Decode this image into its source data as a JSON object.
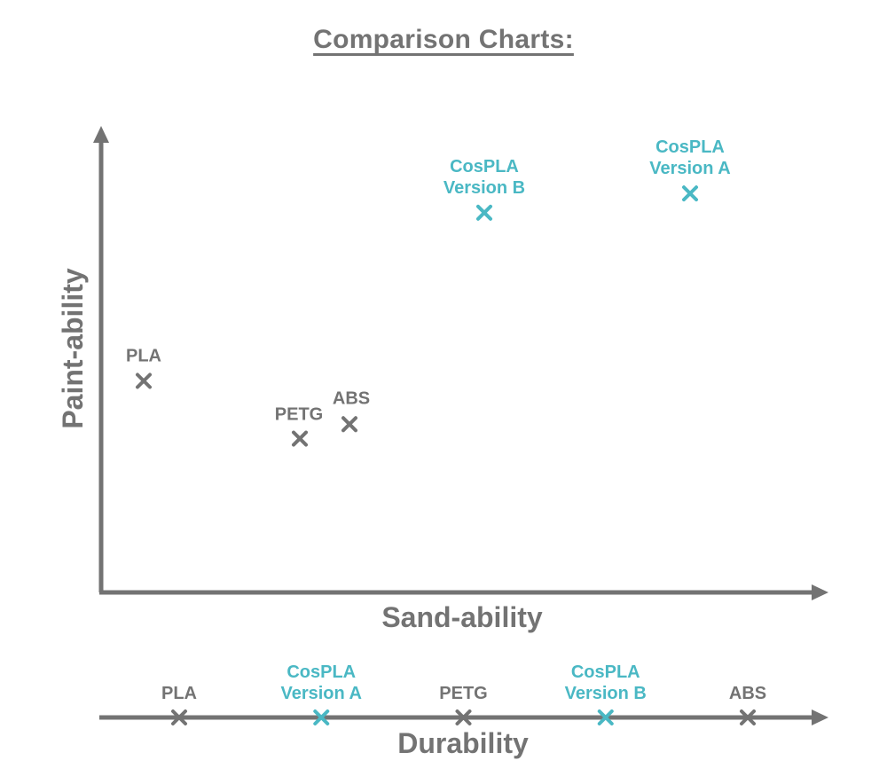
{
  "colors": {
    "axis": "#737373",
    "gray_point": "#737373",
    "teal_point": "#4ab8c4"
  },
  "chart_data": [
    {
      "type": "scatter",
      "title": "Comparison Charts:",
      "xlabel": "Sand-ability",
      "ylabel": "Paint-ability",
      "xlim": [
        0,
        10
      ],
      "ylim": [
        0,
        10
      ],
      "grid": false,
      "points": [
        {
          "label": "PLA",
          "x": 0.6,
          "y": 4.4,
          "color": "gray"
        },
        {
          "label": "PETG",
          "x": 2.8,
          "y": 3.2,
          "color": "gray"
        },
        {
          "label": "ABS",
          "x": 3.5,
          "y": 3.5,
          "color": "gray"
        },
        {
          "label_lines": [
            "CosPLA",
            "Version B"
          ],
          "x": 5.4,
          "y": 7.9,
          "color": "teal"
        },
        {
          "label_lines": [
            "CosPLA",
            "Version A"
          ],
          "x": 8.3,
          "y": 8.3,
          "color": "teal"
        }
      ]
    },
    {
      "type": "scatter",
      "xlabel": "Durability",
      "xlim": [
        0,
        10
      ],
      "points": [
        {
          "label": "PLA",
          "x": 1,
          "color": "gray"
        },
        {
          "label_lines": [
            "CosPLA",
            "Version A"
          ],
          "x": 3,
          "color": "teal"
        },
        {
          "label": "PETG",
          "x": 5,
          "color": "gray"
        },
        {
          "label_lines": [
            "CosPLA",
            "Version B"
          ],
          "x": 7,
          "color": "teal"
        },
        {
          "label": "ABS",
          "x": 9,
          "color": "gray"
        }
      ]
    }
  ]
}
